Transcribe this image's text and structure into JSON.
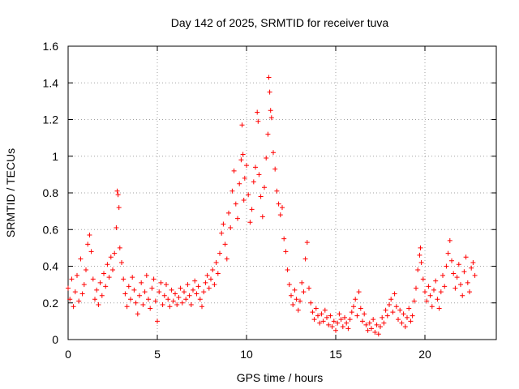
{
  "chart_data": {
    "type": "scatter",
    "title": "Day 142 of 2025, SRMTID for receiver tuva",
    "xlabel": "GPS time / hours",
    "ylabel": "SRMTID / TECUs",
    "xlim": [
      0,
      24
    ],
    "ylim": [
      0,
      1.6
    ],
    "xticks": [
      0,
      5,
      10,
      15,
      20
    ],
    "yticks": [
      0,
      0.2,
      0.4,
      0.6,
      0.8,
      1,
      1.2,
      1.4,
      1.6
    ],
    "xtick_labels": [
      "0",
      "5",
      "10",
      "15",
      "20"
    ],
    "ytick_labels": [
      "0",
      "0.2",
      "0.4",
      "0.6",
      "0.8",
      "1",
      "1.2",
      "1.4",
      "1.6"
    ],
    "grid": true,
    "marker": "+",
    "color": "#ff0000",
    "series": [
      {
        "name": "SRMTID",
        "points": [
          [
            0.0,
            0.28
          ],
          [
            0.1,
            0.22
          ],
          [
            0.2,
            0.33
          ],
          [
            0.3,
            0.18
          ],
          [
            0.4,
            0.26
          ],
          [
            0.5,
            0.35
          ],
          [
            0.6,
            0.21
          ],
          [
            0.7,
            0.44
          ],
          [
            0.8,
            0.25
          ],
          [
            0.9,
            0.3
          ],
          [
            1.0,
            0.38
          ],
          [
            1.1,
            0.52
          ],
          [
            1.2,
            0.57
          ],
          [
            1.3,
            0.48
          ],
          [
            1.4,
            0.33
          ],
          [
            1.5,
            0.22
          ],
          [
            1.6,
            0.27
          ],
          [
            1.7,
            0.19
          ],
          [
            1.8,
            0.31
          ],
          [
            1.9,
            0.24
          ],
          [
            2.0,
            0.36
          ],
          [
            2.1,
            0.29
          ],
          [
            2.2,
            0.41
          ],
          [
            2.3,
            0.34
          ],
          [
            2.4,
            0.45
          ],
          [
            2.5,
            0.38
          ],
          [
            2.6,
            0.47
          ],
          [
            2.7,
            0.61
          ],
          [
            2.75,
            0.81
          ],
          [
            2.8,
            0.79
          ],
          [
            2.85,
            0.72
          ],
          [
            2.9,
            0.5
          ],
          [
            3.0,
            0.42
          ],
          [
            3.1,
            0.33
          ],
          [
            3.2,
            0.25
          ],
          [
            3.3,
            0.18
          ],
          [
            3.4,
            0.29
          ],
          [
            3.5,
            0.22
          ],
          [
            3.6,
            0.34
          ],
          [
            3.7,
            0.27
          ],
          [
            3.8,
            0.2
          ],
          [
            3.9,
            0.14
          ],
          [
            4.0,
            0.24
          ],
          [
            4.1,
            0.31
          ],
          [
            4.2,
            0.19
          ],
          [
            4.3,
            0.26
          ],
          [
            4.4,
            0.35
          ],
          [
            4.5,
            0.22
          ],
          [
            4.6,
            0.17
          ],
          [
            4.7,
            0.28
          ],
          [
            4.8,
            0.33
          ],
          [
            4.9,
            0.21
          ],
          [
            5.0,
            0.1
          ],
          [
            5.1,
            0.26
          ],
          [
            5.2,
            0.31
          ],
          [
            5.3,
            0.19
          ],
          [
            5.4,
            0.24
          ],
          [
            5.5,
            0.3
          ],
          [
            5.6,
            0.22
          ],
          [
            5.7,
            0.18
          ],
          [
            5.8,
            0.27
          ],
          [
            5.9,
            0.21
          ],
          [
            6.0,
            0.25
          ],
          [
            6.1,
            0.19
          ],
          [
            6.2,
            0.23
          ],
          [
            6.3,
            0.28
          ],
          [
            6.4,
            0.2
          ],
          [
            6.5,
            0.26
          ],
          [
            6.6,
            0.22
          ],
          [
            6.7,
            0.3
          ],
          [
            6.8,
            0.24
          ],
          [
            6.9,
            0.19
          ],
          [
            7.0,
            0.27
          ],
          [
            7.1,
            0.32
          ],
          [
            7.2,
            0.25
          ],
          [
            7.3,
            0.29
          ],
          [
            7.4,
            0.22
          ],
          [
            7.5,
            0.18
          ],
          [
            7.6,
            0.26
          ],
          [
            7.7,
            0.31
          ],
          [
            7.8,
            0.35
          ],
          [
            7.9,
            0.28
          ],
          [
            8.0,
            0.33
          ],
          [
            8.1,
            0.38
          ],
          [
            8.2,
            0.3
          ],
          [
            8.3,
            0.42
          ],
          [
            8.4,
            0.36
          ],
          [
            8.5,
            0.47
          ],
          [
            8.6,
            0.58
          ],
          [
            8.7,
            0.63
          ],
          [
            8.8,
            0.52
          ],
          [
            8.9,
            0.44
          ],
          [
            9.0,
            0.69
          ],
          [
            9.1,
            0.61
          ],
          [
            9.2,
            0.81
          ],
          [
            9.3,
            0.92
          ],
          [
            9.4,
            0.74
          ],
          [
            9.5,
            0.66
          ],
          [
            9.6,
            0.85
          ],
          [
            9.7,
            0.98
          ],
          [
            9.75,
            1.17
          ],
          [
            9.8,
            1.01
          ],
          [
            9.85,
            0.76
          ],
          [
            9.9,
            0.88
          ],
          [
            10.0,
            0.95
          ],
          [
            10.1,
            0.79
          ],
          [
            10.2,
            0.64
          ],
          [
            10.3,
            0.71
          ],
          [
            10.4,
            0.86
          ],
          [
            10.5,
            0.94
          ],
          [
            10.6,
            1.24
          ],
          [
            10.65,
            1.19
          ],
          [
            10.7,
            0.9
          ],
          [
            10.8,
            0.78
          ],
          [
            10.9,
            0.67
          ],
          [
            11.0,
            0.83
          ],
          [
            11.1,
            0.99
          ],
          [
            11.2,
            1.12
          ],
          [
            11.25,
            1.43
          ],
          [
            11.3,
            1.35
          ],
          [
            11.35,
            1.25
          ],
          [
            11.4,
            1.21
          ],
          [
            11.5,
            1.02
          ],
          [
            11.6,
            0.93
          ],
          [
            11.7,
            0.81
          ],
          [
            11.8,
            0.74
          ],
          [
            11.9,
            0.68
          ],
          [
            12.0,
            0.72
          ],
          [
            12.1,
            0.55
          ],
          [
            12.2,
            0.48
          ],
          [
            12.3,
            0.38
          ],
          [
            12.4,
            0.3
          ],
          [
            12.5,
            0.24
          ],
          [
            12.6,
            0.19
          ],
          [
            12.7,
            0.27
          ],
          [
            12.8,
            0.22
          ],
          [
            12.9,
            0.16
          ],
          [
            13.0,
            0.21
          ],
          [
            13.1,
            0.31
          ],
          [
            13.2,
            0.26
          ],
          [
            13.3,
            0.44
          ],
          [
            13.4,
            0.53
          ],
          [
            13.5,
            0.28
          ],
          [
            13.6,
            0.2
          ],
          [
            13.7,
            0.15
          ],
          [
            13.8,
            0.11
          ],
          [
            13.9,
            0.17
          ],
          [
            14.0,
            0.13
          ],
          [
            14.1,
            0.09
          ],
          [
            14.2,
            0.14
          ],
          [
            14.3,
            0.1
          ],
          [
            14.4,
            0.16
          ],
          [
            14.5,
            0.12
          ],
          [
            14.6,
            0.08
          ],
          [
            14.7,
            0.13
          ],
          [
            14.8,
            0.07
          ],
          [
            14.9,
            0.1
          ],
          [
            15.0,
            0.05
          ],
          [
            15.1,
            0.09
          ],
          [
            15.2,
            0.14
          ],
          [
            15.3,
            0.11
          ],
          [
            15.4,
            0.07
          ],
          [
            15.5,
            0.12
          ],
          [
            15.6,
            0.09
          ],
          [
            15.7,
            0.06
          ],
          [
            15.8,
            0.11
          ],
          [
            15.9,
            0.15
          ],
          [
            16.0,
            0.18
          ],
          [
            16.1,
            0.22
          ],
          [
            16.2,
            0.13
          ],
          [
            16.3,
            0.26
          ],
          [
            16.4,
            0.17
          ],
          [
            16.5,
            0.1
          ],
          [
            16.6,
            0.14
          ],
          [
            16.7,
            0.08
          ],
          [
            16.8,
            0.05
          ],
          [
            16.9,
            0.09
          ],
          [
            17.0,
            0.06
          ],
          [
            17.1,
            0.11
          ],
          [
            17.2,
            0.04
          ],
          [
            17.3,
            0.08
          ],
          [
            17.4,
            0.03
          ],
          [
            17.5,
            0.07
          ],
          [
            17.6,
            0.12
          ],
          [
            17.7,
            0.09
          ],
          [
            17.8,
            0.16
          ],
          [
            17.9,
            0.13
          ],
          [
            18.0,
            0.19
          ],
          [
            18.1,
            0.22
          ],
          [
            18.2,
            0.15
          ],
          [
            18.3,
            0.25
          ],
          [
            18.4,
            0.18
          ],
          [
            18.5,
            0.11
          ],
          [
            18.6,
            0.16
          ],
          [
            18.7,
            0.09
          ],
          [
            18.8,
            0.14
          ],
          [
            18.9,
            0.07
          ],
          [
            19.0,
            0.12
          ],
          [
            19.1,
            0.17
          ],
          [
            19.2,
            0.1
          ],
          [
            19.3,
            0.13
          ],
          [
            19.4,
            0.21
          ],
          [
            19.5,
            0.28
          ],
          [
            19.6,
            0.38
          ],
          [
            19.7,
            0.46
          ],
          [
            19.75,
            0.5
          ],
          [
            19.8,
            0.42
          ],
          [
            19.9,
            0.33
          ],
          [
            20.0,
            0.26
          ],
          [
            20.1,
            0.21
          ],
          [
            20.2,
            0.29
          ],
          [
            20.3,
            0.24
          ],
          [
            20.4,
            0.18
          ],
          [
            20.5,
            0.27
          ],
          [
            20.6,
            0.32
          ],
          [
            20.7,
            0.22
          ],
          [
            20.8,
            0.17
          ],
          [
            20.9,
            0.26
          ],
          [
            21.0,
            0.35
          ],
          [
            21.1,
            0.29
          ],
          [
            21.2,
            0.4
          ],
          [
            21.3,
            0.47
          ],
          [
            21.4,
            0.54
          ],
          [
            21.5,
            0.43
          ],
          [
            21.6,
            0.36
          ],
          [
            21.7,
            0.28
          ],
          [
            21.8,
            0.34
          ],
          [
            21.9,
            0.41
          ],
          [
            22.0,
            0.3
          ],
          [
            22.1,
            0.24
          ],
          [
            22.2,
            0.37
          ],
          [
            22.3,
            0.45
          ],
          [
            22.4,
            0.31
          ],
          [
            22.5,
            0.26
          ],
          [
            22.6,
            0.39
          ],
          [
            22.7,
            0.42
          ],
          [
            22.8,
            0.35
          ]
        ]
      }
    ]
  }
}
